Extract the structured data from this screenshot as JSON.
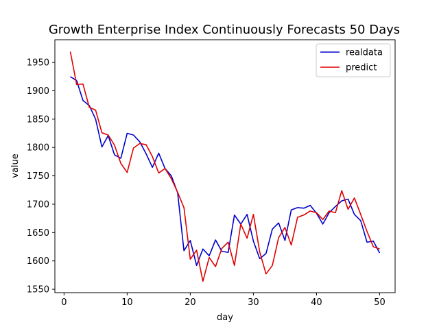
{
  "chart_data": {
    "type": "line",
    "title": "Growth Enterprise Index Continuously Forecasts 50 Days",
    "xlabel": "day",
    "ylabel": "value",
    "xlim": [
      -1.45,
      52.45
    ],
    "ylim": [
      1544,
      1990
    ],
    "x_ticks": [
      0,
      10,
      20,
      30,
      40,
      50
    ],
    "y_ticks": [
      1550,
      1600,
      1650,
      1700,
      1750,
      1800,
      1850,
      1900,
      1950
    ],
    "grid": false,
    "legend_position": "top-right",
    "x": [
      1,
      2,
      3,
      4,
      5,
      6,
      7,
      8,
      9,
      10,
      11,
      12,
      13,
      14,
      15,
      16,
      17,
      18,
      19,
      20,
      21,
      22,
      23,
      24,
      25,
      26,
      27,
      28,
      29,
      30,
      31,
      32,
      33,
      34,
      35,
      36,
      37,
      38,
      39,
      40,
      41,
      42,
      43,
      44,
      45,
      46,
      47,
      48,
      49,
      50
    ],
    "series": [
      {
        "name": "realdata",
        "color": "#0000cc",
        "values": [
          1925,
          1918,
          1883,
          1874,
          1850,
          1801,
          1821,
          1787,
          1781,
          1825,
          1822,
          1810,
          1789,
          1765,
          1790,
          1763,
          1750,
          1720,
          1618,
          1636,
          1592,
          1621,
          1609,
          1637,
          1617,
          1615,
          1681,
          1665,
          1682,
          1635,
          1604,
          1613,
          1656,
          1667,
          1636,
          1690,
          1694,
          1693,
          1698,
          1684,
          1665,
          1685,
          1696,
          1706,
          1709,
          1682,
          1671,
          1633,
          1635,
          1614
        ]
      },
      {
        "name": "predict",
        "color": "#e00000",
        "values": [
          1969,
          1911,
          1912,
          1871,
          1866,
          1826,
          1822,
          1804,
          1772,
          1756,
          1799,
          1807,
          1805,
          1784,
          1755,
          1763,
          1745,
          1721,
          1694,
          1603,
          1619,
          1564,
          1606,
          1590,
          1622,
          1633,
          1592,
          1665,
          1640,
          1682,
          1616,
          1577,
          1592,
          1641,
          1659,
          1628,
          1677,
          1681,
          1688,
          1685,
          1673,
          1688,
          1685,
          1724,
          1691,
          1711,
          1682,
          1652,
          1625,
          1621
        ]
      }
    ]
  }
}
